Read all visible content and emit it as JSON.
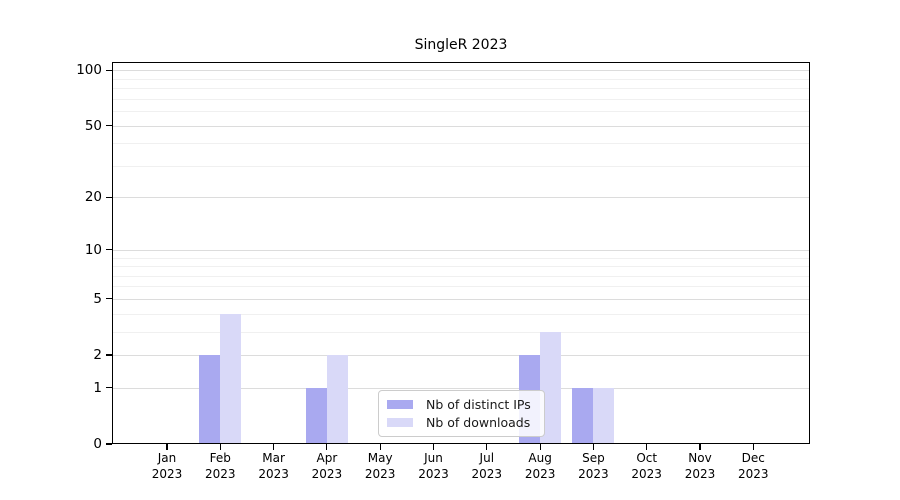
{
  "chart_data": {
    "type": "bar",
    "title": "SingleR 2023",
    "categories": [
      "Jan",
      "Feb",
      "Mar",
      "Apr",
      "May",
      "Jun",
      "Jul",
      "Aug",
      "Sep",
      "Oct",
      "Nov",
      "Dec"
    ],
    "year": "2023",
    "series": [
      {
        "name": "Nb of distinct IPs",
        "color": "#a9a9f0",
        "values": [
          0,
          2,
          0,
          1,
          0,
          0,
          0,
          2,
          1,
          0,
          0,
          0
        ]
      },
      {
        "name": "Nb of downloads",
        "color": "#d9d9f8",
        "values": [
          0,
          4,
          0,
          2,
          0,
          0,
          0,
          3,
          1,
          0,
          0,
          0
        ]
      }
    ],
    "xlabel": "",
    "ylabel": "",
    "yscale": "log1p",
    "yticks": [
      0,
      1,
      2,
      5,
      10,
      20,
      50,
      100
    ],
    "minor_yticks": [
      3,
      4,
      6,
      7,
      8,
      9,
      30,
      40,
      60,
      70,
      80,
      90
    ],
    "ylim": [
      0,
      111
    ],
    "grid": "horizontal",
    "legend_position": "lower-center-inside"
  }
}
